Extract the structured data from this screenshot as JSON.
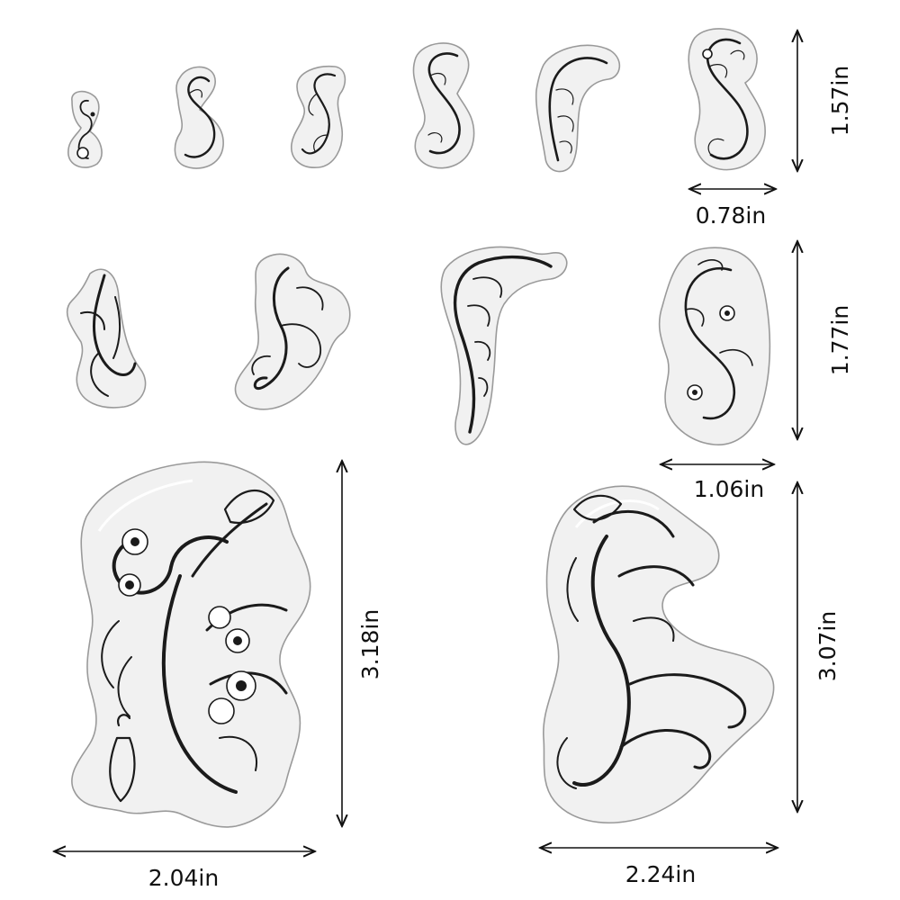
{
  "background": "#ffffff",
  "ink_color": "#1b1b1b",
  "stamp_color": "#f1f1f1",
  "stamps": [
    {
      "name": "stamp-small-s-1"
    },
    {
      "name": "stamp-small-s-2"
    },
    {
      "name": "stamp-small-s-3"
    },
    {
      "name": "stamp-small-s-4"
    },
    {
      "name": "stamp-small-curl-5"
    },
    {
      "name": "stamp-small-s-6"
    },
    {
      "name": "stamp-medium-leaf-1"
    },
    {
      "name": "stamp-medium-scroll-2"
    },
    {
      "name": "stamp-medium-curl-3"
    },
    {
      "name": "stamp-medium-floral-4"
    },
    {
      "name": "stamp-large-floral"
    },
    {
      "name": "stamp-large-scroll"
    }
  ],
  "dimensions": {
    "row1_height": "1.57in",
    "row1_width": "0.78in",
    "row2_height": "1.77in",
    "row2_width": "1.06in",
    "large_left_height": "3.18in",
    "large_left_width": "2.04in",
    "large_right_height": "3.07in",
    "large_right_width": "2.24in"
  }
}
